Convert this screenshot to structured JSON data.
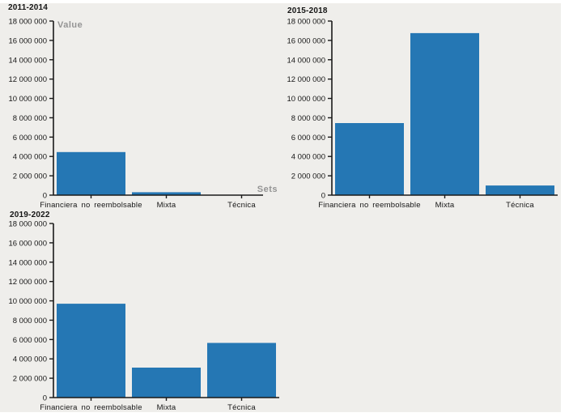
{
  "page": {
    "background_color": "#efeeeb",
    "frame_color": "#ffffff"
  },
  "chart_data": [
    {
      "type": "bar",
      "title": "2011-2014",
      "ylabel": "Value",
      "xlabel": "Sets",
      "categories": [
        "Financiera no reembolsable",
        "Mixta",
        "Técnica"
      ],
      "values": [
        4450000,
        300000,
        0
      ],
      "ylim": [
        0,
        18000000
      ],
      "ytick_values": [
        0,
        2000000,
        4000000,
        6000000,
        8000000,
        10000000,
        12000000,
        14000000,
        16000000,
        18000000
      ],
      "ytick_labels": [
        "0",
        "2 000 000",
        "4 000 000",
        "6 000 000",
        "8 000 000",
        "10 000 000",
        "12 000 000",
        "14 000 000",
        "16 000 000",
        "18 000 000"
      ],
      "bar_color": "#2577b4",
      "axis_color": "#1a1a1a",
      "text_color": "#161616",
      "axis_label_color": "#949494",
      "grid": false,
      "legend": "none"
    },
    {
      "type": "bar",
      "title": "2015-2018",
      "ylabel": "",
      "xlabel": "",
      "categories": [
        "Financiera no reembolsable",
        "Mixta",
        "Técnica"
      ],
      "values": [
        7450000,
        16750000,
        1000000
      ],
      "ylim": [
        0,
        18000000
      ],
      "ytick_values": [
        0,
        2000000,
        4000000,
        6000000,
        8000000,
        10000000,
        12000000,
        14000000,
        16000000,
        18000000
      ],
      "ytick_labels": [
        "0",
        "2 000 000",
        "4 000 000",
        "6 000 000",
        "8 000 000",
        "10 000 000",
        "12 000 000",
        "14 000 000",
        "16 000 000",
        "18 000 000"
      ],
      "bar_color": "#2577b4",
      "axis_color": "#1a1a1a",
      "text_color": "#161616",
      "axis_label_color": "#949494",
      "grid": false,
      "legend": "none"
    },
    {
      "type": "bar",
      "title": "2019-2022",
      "ylabel": "",
      "xlabel": "",
      "categories": [
        "Financiera no reembolsable",
        "Mixta",
        "Técnica"
      ],
      "values": [
        9700000,
        3100000,
        5650000
      ],
      "ylim": [
        0,
        18000000
      ],
      "ytick_values": [
        0,
        2000000,
        4000000,
        6000000,
        8000000,
        10000000,
        12000000,
        14000000,
        16000000,
        18000000
      ],
      "ytick_labels": [
        "0",
        "2 000 000",
        "4 000 000",
        "6 000 000",
        "8 000 000",
        "10 000 000",
        "12 000 000",
        "14 000 000",
        "16 000 000",
        "18 000 000"
      ],
      "bar_color": "#2577b4",
      "axis_color": "#1a1a1a",
      "text_color": "#161616",
      "axis_label_color": "#949494",
      "grid": false,
      "legend": "none"
    }
  ]
}
